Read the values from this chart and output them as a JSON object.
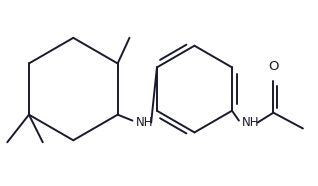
{
  "bg_color": "#ffffff",
  "line_color": "#1a1a2e",
  "line_width": 1.4,
  "font_size": 8.5,
  "figsize": [
    3.18,
    1.86
  ],
  "dpi": 100,
  "xlim": [
    0,
    318
  ],
  "ylim": [
    0,
    186
  ]
}
